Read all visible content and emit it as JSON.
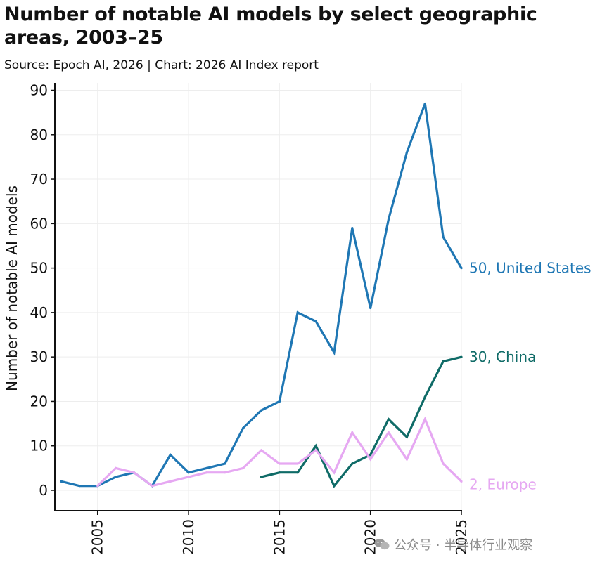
{
  "header": {
    "title": "Number of notable AI models by select geographic areas, 2003–25",
    "source": "Source: Epoch AI, 2026 | Chart: 2026 AI Index report"
  },
  "watermark": {
    "text": "公众号 · 半导体行业观察",
    "icon": "wechat-icon"
  },
  "chart_data": {
    "type": "line",
    "title": "Number of notable AI models by select geographic areas, 2003–25",
    "xlabel": "",
    "ylabel": "Number of notable AI models",
    "xlim": [
      2003,
      2025
    ],
    "ylim": [
      -5,
      90
    ],
    "x_ticks": [
      2005,
      2010,
      2015,
      2020,
      2025
    ],
    "y_ticks": [
      0,
      10,
      20,
      30,
      40,
      50,
      60,
      70,
      80,
      90
    ],
    "grid": true,
    "series": [
      {
        "name": "United States",
        "end_label": "50, United States",
        "color": "#1f77b4",
        "x": [
          2003,
          2004,
          2005,
          2006,
          2007,
          2008,
          2009,
          2010,
          2011,
          2012,
          2013,
          2014,
          2015,
          2016,
          2017,
          2018,
          2019,
          2020,
          2021,
          2022,
          2023,
          2024,
          2025
        ],
        "values": [
          2,
          1,
          1,
          3,
          4,
          1,
          8,
          4,
          5,
          6,
          14,
          18,
          20,
          40,
          38,
          31,
          59,
          41,
          61,
          76,
          87,
          57,
          50
        ]
      },
      {
        "name": "China",
        "end_label": "30, China",
        "color": "#0f6b67",
        "x": [
          2014,
          2015,
          2016,
          2017,
          2018,
          2019,
          2020,
          2021,
          2022,
          2023,
          2024,
          2025
        ],
        "values": [
          3,
          4,
          4,
          10,
          1,
          6,
          8,
          16,
          12,
          21,
          29,
          30
        ]
      },
      {
        "name": "Europe",
        "end_label": "2, Europe",
        "color": "#e6a8f2",
        "x": [
          2005,
          2006,
          2007,
          2008,
          2009,
          2010,
          2011,
          2012,
          2013,
          2014,
          2015,
          2016,
          2017,
          2018,
          2019,
          2020,
          2021,
          2022,
          2023,
          2024,
          2025
        ],
        "values": [
          1,
          5,
          4,
          1,
          2,
          3,
          4,
          4,
          5,
          9,
          6,
          6,
          9,
          4,
          13,
          7,
          13,
          7,
          16,
          6,
          2
        ]
      }
    ]
  }
}
